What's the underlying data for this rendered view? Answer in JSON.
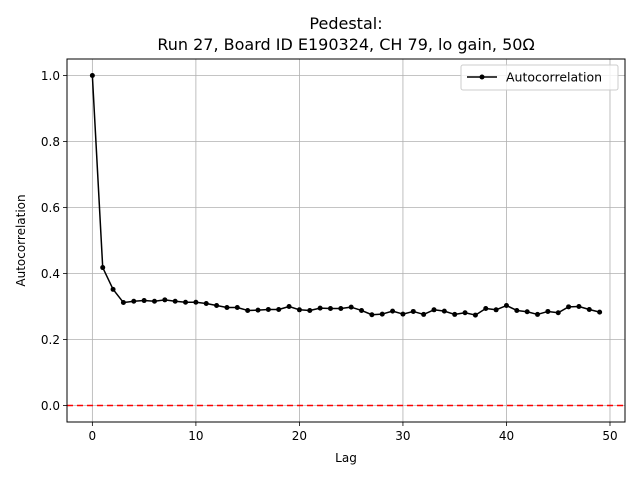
{
  "chart_data": {
    "type": "line",
    "title": "Pedestal:",
    "subtitle": "Run 27, Board ID E190324, CH 79, lo gain, 50Ω",
    "xlabel": "Lag",
    "ylabel": "Autocorrelation",
    "xlim": [
      -2.45,
      51.45
    ],
    "ylim": [
      -0.05,
      1.05
    ],
    "x_ticks": [
      0,
      10,
      20,
      30,
      40,
      50
    ],
    "y_ticks": [
      0.0,
      0.2,
      0.4,
      0.6,
      0.8,
      1.0
    ],
    "x_tick_labels": [
      "0",
      "10",
      "20",
      "30",
      "40",
      "50"
    ],
    "y_tick_labels": [
      "0.0",
      "0.2",
      "0.4",
      "0.6",
      "0.8",
      "1.0"
    ],
    "grid": true,
    "legend_position": "top-right",
    "series": [
      {
        "name": "Autocorrelation",
        "color": "#000000",
        "marker": "dot",
        "x": [
          0,
          1,
          2,
          3,
          4,
          5,
          6,
          7,
          8,
          9,
          10,
          11,
          12,
          13,
          14,
          15,
          16,
          17,
          18,
          19,
          20,
          21,
          22,
          23,
          24,
          25,
          26,
          27,
          28,
          29,
          30,
          31,
          32,
          33,
          34,
          35,
          36,
          37,
          38,
          39,
          40,
          41,
          42,
          43,
          44,
          45,
          46,
          47,
          48,
          49
        ],
        "values": [
          1.0,
          0.418,
          0.352,
          0.312,
          0.316,
          0.318,
          0.316,
          0.32,
          0.316,
          0.313,
          0.313,
          0.309,
          0.303,
          0.297,
          0.297,
          0.288,
          0.289,
          0.291,
          0.291,
          0.3,
          0.29,
          0.288,
          0.295,
          0.294,
          0.294,
          0.298,
          0.288,
          0.275,
          0.277,
          0.286,
          0.277,
          0.285,
          0.276,
          0.29,
          0.286,
          0.276,
          0.281,
          0.274,
          0.294,
          0.29,
          0.303,
          0.288,
          0.284,
          0.276,
          0.285,
          0.281,
          0.299,
          0.3,
          0.291,
          0.283
        ]
      }
    ],
    "reference_line": {
      "y": 0.0,
      "color": "#ff0000",
      "style": "dashed"
    }
  }
}
